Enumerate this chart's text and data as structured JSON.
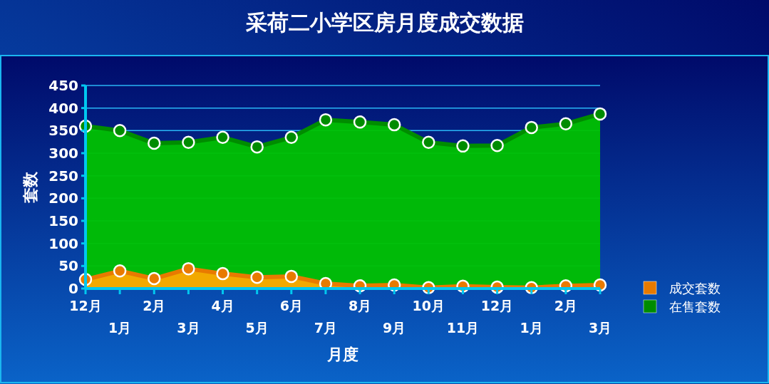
{
  "chart_data": {
    "type": "area",
    "title": "采荷二小学区房月度成交数据",
    "xlabel": "月度",
    "ylabel": "套数",
    "categories": [
      "12月",
      "1月",
      "2月",
      "3月",
      "4月",
      "5月",
      "6月",
      "7月",
      "8月",
      "9月",
      "10月",
      "11月",
      "12月",
      "1月",
      "2月",
      "3月"
    ],
    "series": [
      {
        "name": "在售套数",
        "color": "#008c00",
        "values": [
          360,
          350,
          322,
          324,
          335,
          314,
          335,
          374,
          369,
          363,
          324,
          316,
          317,
          357,
          365,
          387
        ]
      },
      {
        "name": "成交套数",
        "color": "#e87a00",
        "values": [
          20,
          39,
          22,
          44,
          33,
          25,
          27,
          11,
          6,
          8,
          2,
          5,
          3,
          2,
          6,
          8
        ]
      }
    ],
    "ylim": [
      0,
      450
    ],
    "yticks": [
      0,
      50,
      100,
      150,
      200,
      250,
      300,
      350,
      400,
      450
    ],
    "grid": "y",
    "legend": "right",
    "marker": "circle"
  }
}
